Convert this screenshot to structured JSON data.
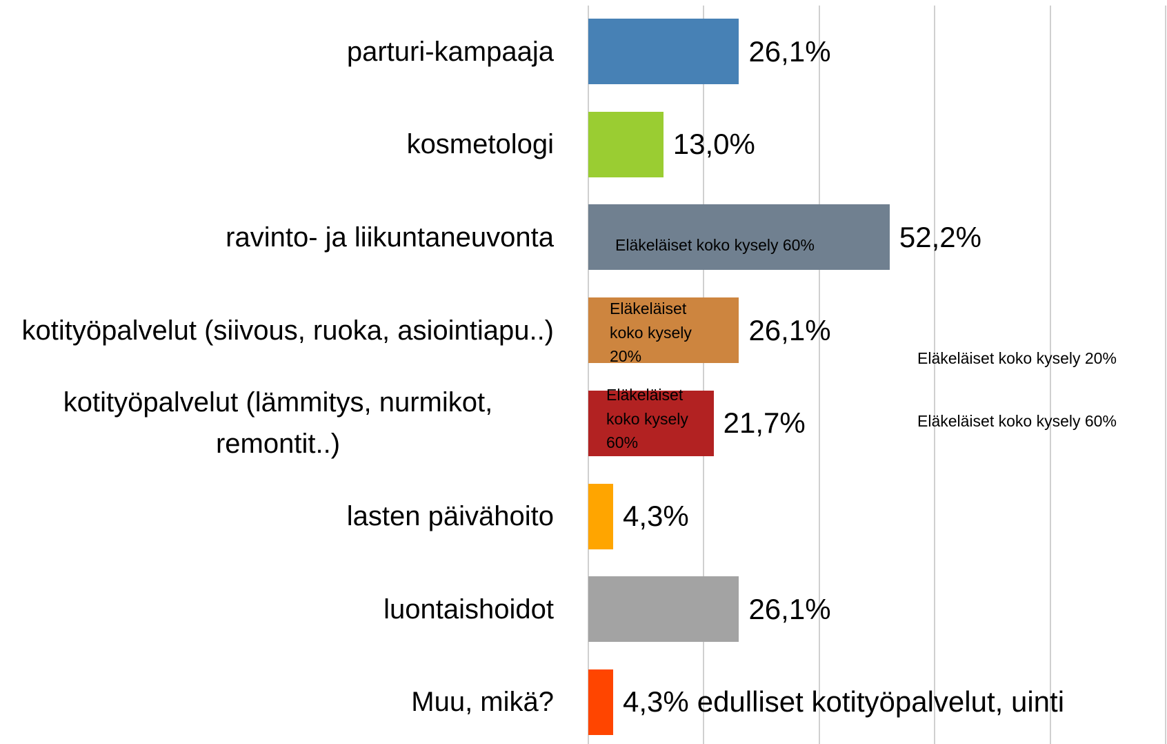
{
  "chart_data": {
    "type": "bar",
    "orientation": "horizontal",
    "categories": [
      "parturi-kampaaja",
      "kosmetologi",
      "ravinto- ja liikuntaneuvonta",
      "kotityöpalvelut (siivous, ruoka, asiointiapu..)",
      "kotityöpalvelut (lämmitys, nurmikot, remontit..)",
      "lasten päivähoito",
      "luontaishoidot",
      "Muu, mikä?"
    ],
    "values": [
      26.1,
      13.0,
      52.2,
      26.1,
      21.7,
      4.3,
      26.1,
      4.3
    ],
    "value_labels": [
      "26,1%",
      "13,0%",
      "52,2%",
      "26,1%",
      "21,7%",
      "4,3%",
      "26,1%",
      "4,3%"
    ],
    "colors": [
      "#4781b5",
      "#9acd32",
      "#708090",
      "#cd853f",
      "#b22222",
      "#ffa500",
      "#a3a3a3",
      "#ff4500"
    ],
    "xlim": [
      0,
      100
    ],
    "xticks": [
      0,
      20,
      40,
      60,
      80,
      100
    ],
    "grid": true,
    "annotations": [
      "Eläkeläiset koko kysely 60%",
      "Eläkeläiset koko kysely 20%",
      "Eläkeläiset koko kysely 60%",
      "Eläkeläiset koko kysely 20%",
      "Eläkeläiset koko kysely 60%",
      "edulliset kotityöpalvelut, uinti"
    ]
  }
}
